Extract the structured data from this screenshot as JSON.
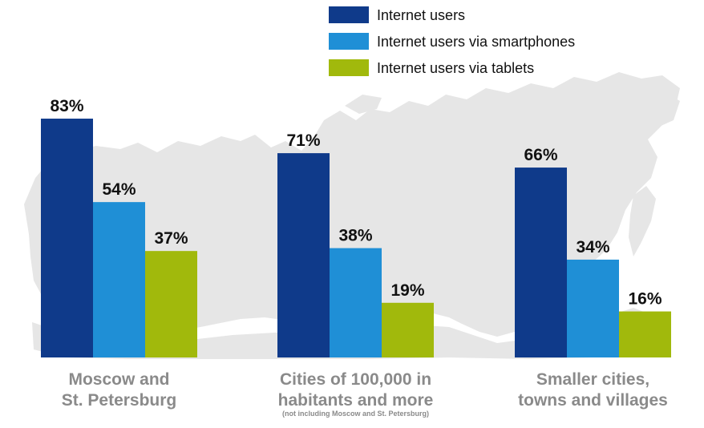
{
  "chart_data": {
    "type": "bar",
    "categories": [
      [
        "Moscow and",
        "St. Petersburg"
      ],
      [
        "Cities of 100,000 in",
        "habitants and more"
      ],
      [
        "Smaller cities,",
        "towns and villages"
      ]
    ],
    "category_notes": [
      "",
      "(not including Moscow and St. Petersburg)",
      ""
    ],
    "series": [
      {
        "name": "Internet users",
        "color": "#0f3a8a",
        "values": [
          83,
          71,
          66
        ],
        "labels": [
          "83%",
          "71%",
          "66%"
        ]
      },
      {
        "name": "Internet users via smartphones",
        "color": "#1f8fd6",
        "values": [
          54,
          38,
          34
        ],
        "labels": [
          "54%",
          "38%",
          "34%"
        ]
      },
      {
        "name": "Internet users via tablets",
        "color": "#a1b90c",
        "values": [
          37,
          19,
          16
        ],
        "labels": [
          "37%",
          "19%",
          "16%"
        ]
      }
    ],
    "legend_position": "top",
    "unit": "%",
    "ylim": [
      0,
      100
    ],
    "background": "map-of-russia",
    "map_color": "#e6e6e6"
  }
}
